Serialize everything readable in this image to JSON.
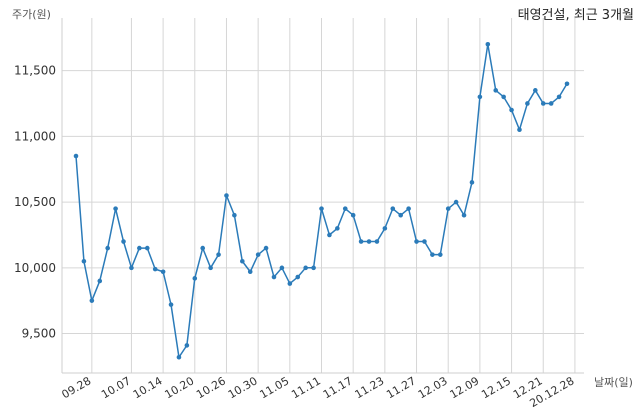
{
  "chart_data": {
    "type": "line",
    "title": "태영건설, 최근 3개월",
    "ylabel": "주가(원)",
    "xlabel": "날짜(일)",
    "ylim": [
      9200,
      11900
    ],
    "yticks": [
      9500,
      10000,
      10500,
      11000,
      11500
    ],
    "ytick_labels": [
      "9,500",
      "10,000",
      "10,500",
      "11,000",
      "11,500"
    ],
    "xtick_labels": [
      "09.28",
      "10.07",
      "10.14",
      "10.20",
      "10.26",
      "10.30",
      "11.05",
      "11.11",
      "11.17",
      "11.23",
      "11.27",
      "12.03",
      "12.09",
      "12.15",
      "12.21",
      "20.12.28"
    ],
    "xtick_index": [
      2,
      7,
      11,
      15,
      19,
      23,
      27,
      31,
      35,
      39,
      43,
      47,
      51,
      55,
      59,
      63
    ],
    "grid": true,
    "series": [
      {
        "color": "#2b7bb9",
        "values": [
          10850,
          10050,
          9750,
          9900,
          10150,
          10450,
          10200,
          10000,
          10150,
          10150,
          9990,
          9970,
          9720,
          9320,
          9410,
          9920,
          10150,
          10000,
          10100,
          10550,
          10400,
          10050,
          9970,
          10100,
          10150,
          9930,
          10000,
          9880,
          9930,
          10000,
          10000,
          10450,
          10250,
          10300,
          10450,
          10400,
          10200,
          10200,
          10200,
          10300,
          10450,
          10400,
          10450,
          10200,
          10200,
          10100,
          10100,
          10450,
          10500,
          10400,
          10650,
          11300,
          11700,
          11350,
          11300,
          11200,
          11050,
          11250,
          11350,
          11250,
          11250,
          11300,
          11400
        ]
      }
    ]
  }
}
